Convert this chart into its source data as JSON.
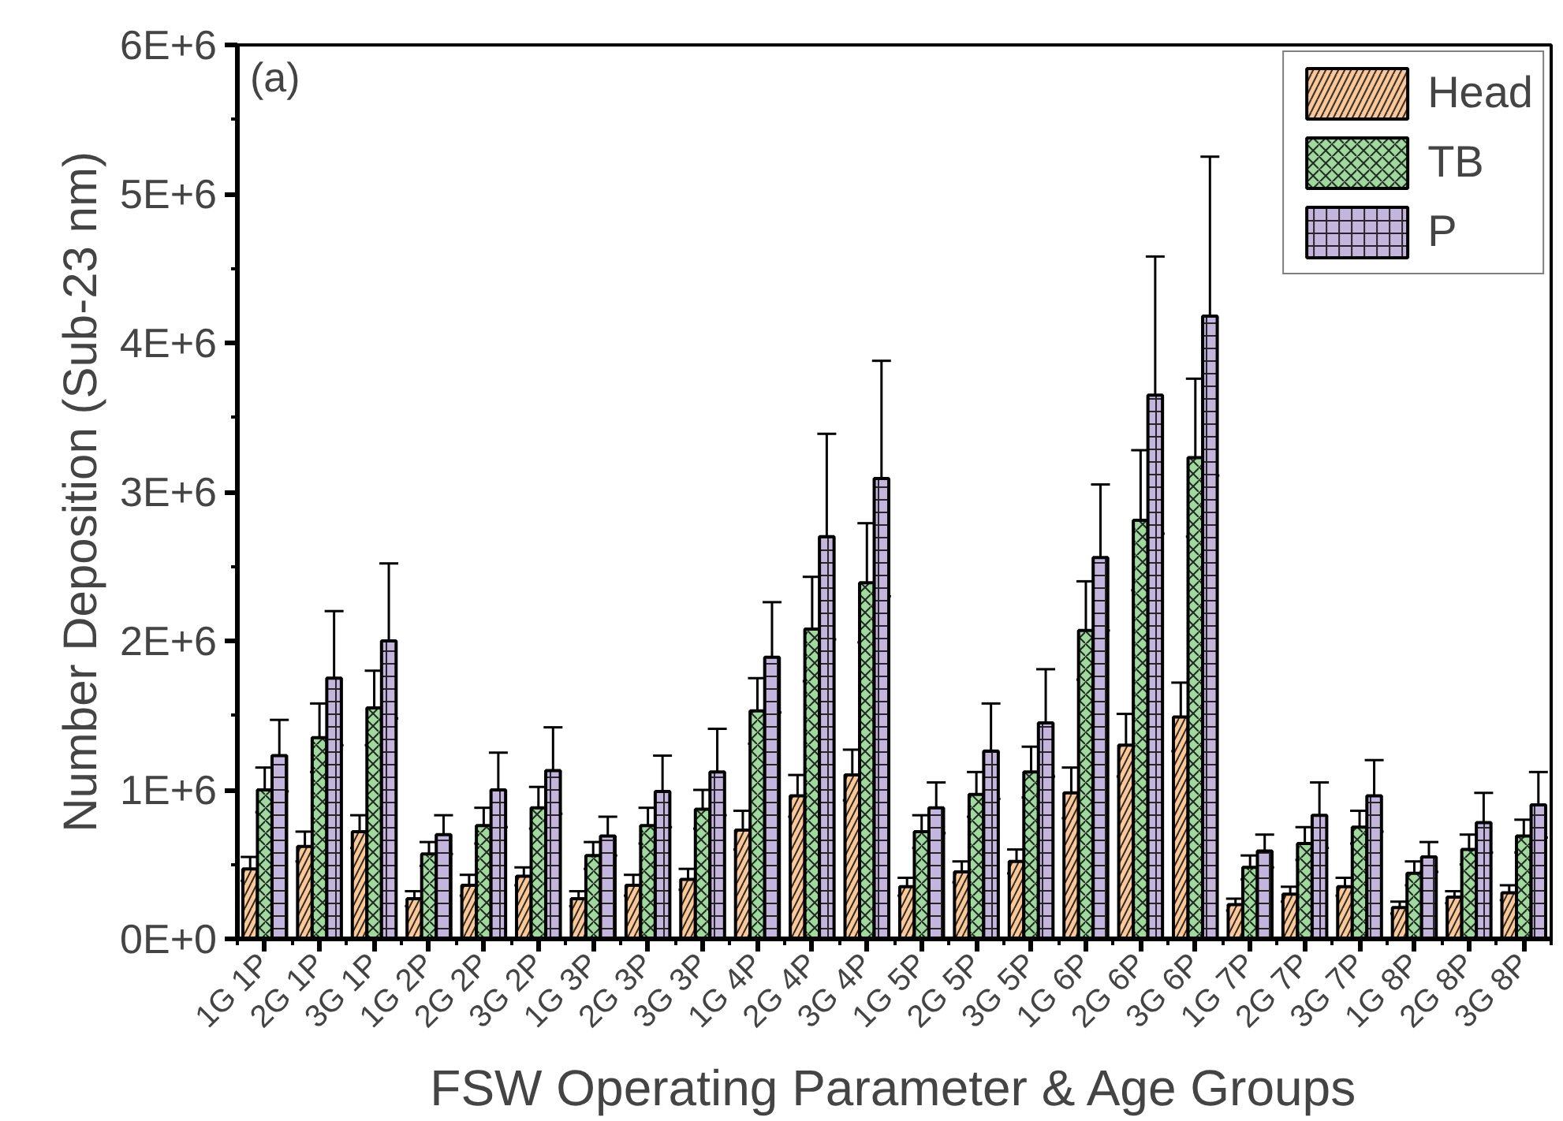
{
  "chart_data": {
    "type": "bar",
    "xlabel": "FSW Operating Parameter & Age Groups",
    "ylabel": "Number Deposition (Sub-23 nm)",
    "annotations": [
      "(a)"
    ],
    "categories": [
      "1G 1P",
      "2G 1P",
      "3G 1P",
      "1G 2P",
      "2G 2P",
      "3G 2P",
      "1G 3P",
      "2G 3P",
      "3G 3P",
      "1G 4P",
      "2G 4P",
      "3G 4P",
      "1G 5P",
      "2G 5P",
      "3G 5P",
      "1G 6P",
      "2G 6P",
      "3G 6P",
      "1G 7P",
      "2G 7P",
      "3G 7P",
      "1G 8P",
      "2G 8P",
      "3G 8P"
    ],
    "series": [
      {
        "name": "Head",
        "color": "#f9c99b",
        "values": [
          470000,
          620000,
          720000,
          270000,
          360000,
          420000,
          270000,
          360000,
          400000,
          730000,
          960000,
          1100000,
          350000,
          450000,
          520000,
          980000,
          1300000,
          1490000,
          230000,
          300000,
          350000,
          210000,
          280000,
          310000
        ],
        "errors": [
          80000,
          100000,
          110000,
          50000,
          70000,
          60000,
          50000,
          70000,
          70000,
          130000,
          140000,
          170000,
          60000,
          70000,
          80000,
          170000,
          210000,
          230000,
          40000,
          50000,
          60000,
          40000,
          40000,
          50000
        ]
      },
      {
        "name": "TB",
        "color": "#a0d8a0",
        "values": [
          1000000,
          1350000,
          1550000,
          570000,
          760000,
          880000,
          560000,
          760000,
          870000,
          1530000,
          2080000,
          2390000,
          720000,
          970000,
          1120000,
          2070000,
          2810000,
          3230000,
          480000,
          640000,
          750000,
          440000,
          600000,
          690000
        ],
        "errors": [
          150000,
          230000,
          250000,
          80000,
          120000,
          140000,
          90000,
          120000,
          130000,
          220000,
          350000,
          400000,
          110000,
          150000,
          170000,
          330000,
          470000,
          530000,
          80000,
          110000,
          110000,
          80000,
          100000,
          110000
        ]
      },
      {
        "name": "P",
        "color": "#c4b5dc",
        "values": [
          1230000,
          1750000,
          2000000,
          700000,
          1000000,
          1130000,
          690000,
          990000,
          1120000,
          1890000,
          2700000,
          3090000,
          880000,
          1260000,
          1450000,
          2560000,
          3650000,
          4180000,
          590000,
          830000,
          960000,
          550000,
          780000,
          900000
        ],
        "errors": [
          240000,
          450000,
          520000,
          130000,
          250000,
          290000,
          130000,
          240000,
          290000,
          370000,
          690000,
          790000,
          170000,
          320000,
          360000,
          490000,
          930000,
          1070000,
          110000,
          220000,
          240000,
          100000,
          200000,
          220000
        ]
      }
    ],
    "ylim": [
      0,
      6000000
    ],
    "yticks": [
      {
        "value": 0,
        "label": "0E+0"
      },
      {
        "value": 1000000,
        "label": "1E+6"
      },
      {
        "value": 2000000,
        "label": "2E+6"
      },
      {
        "value": 3000000,
        "label": "3E+6"
      },
      {
        "value": 4000000,
        "label": "4E+6"
      },
      {
        "value": 5000000,
        "label": "5E+6"
      },
      {
        "value": 6000000,
        "label": "6E+6"
      }
    ],
    "grid": false,
    "legend": "top right"
  }
}
